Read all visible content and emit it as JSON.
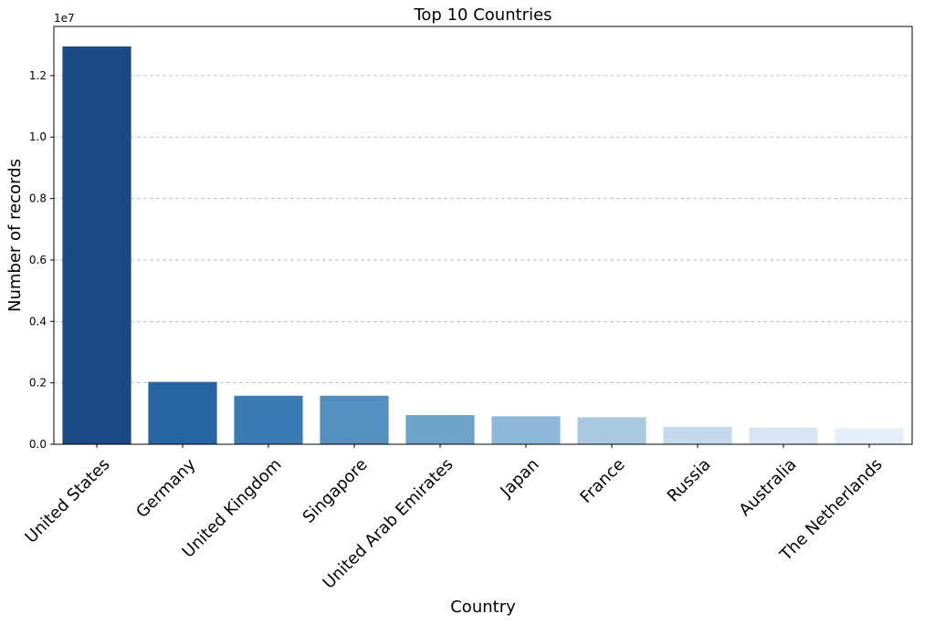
{
  "chart_data": {
    "type": "bar",
    "title": "Top 10 Countries",
    "xlabel": "Country",
    "ylabel": "Number of records",
    "y_offset_label": "1e7",
    "categories": [
      "United States",
      "Germany",
      "United Kingdom",
      "Singapore",
      "United Arab Emirates",
      "Japan",
      "France",
      "Russia",
      "Australia",
      "The Netherlands"
    ],
    "values": [
      12950000,
      2030000,
      1580000,
      1580000,
      950000,
      910000,
      880000,
      570000,
      545000,
      520000
    ],
    "colors": [
      "#1c4a84",
      "#2565a2",
      "#3a7bb4",
      "#548fbf",
      "#6ea2c9",
      "#8eb8d8",
      "#a9c9de",
      "#c5d9ed",
      "#d8e5f2",
      "#e6eff9"
    ],
    "ylim": [
      0,
      13600000
    ],
    "yticks": [
      0,
      2000000,
      4000000,
      6000000,
      8000000,
      10000000,
      12000000
    ],
    "ytick_labels": [
      "0.0",
      "0.2",
      "0.4",
      "0.6",
      "0.8",
      "1.0",
      "1.2"
    ],
    "xtick_rotation": 45,
    "grid": "y-dashed",
    "legend": "none"
  }
}
